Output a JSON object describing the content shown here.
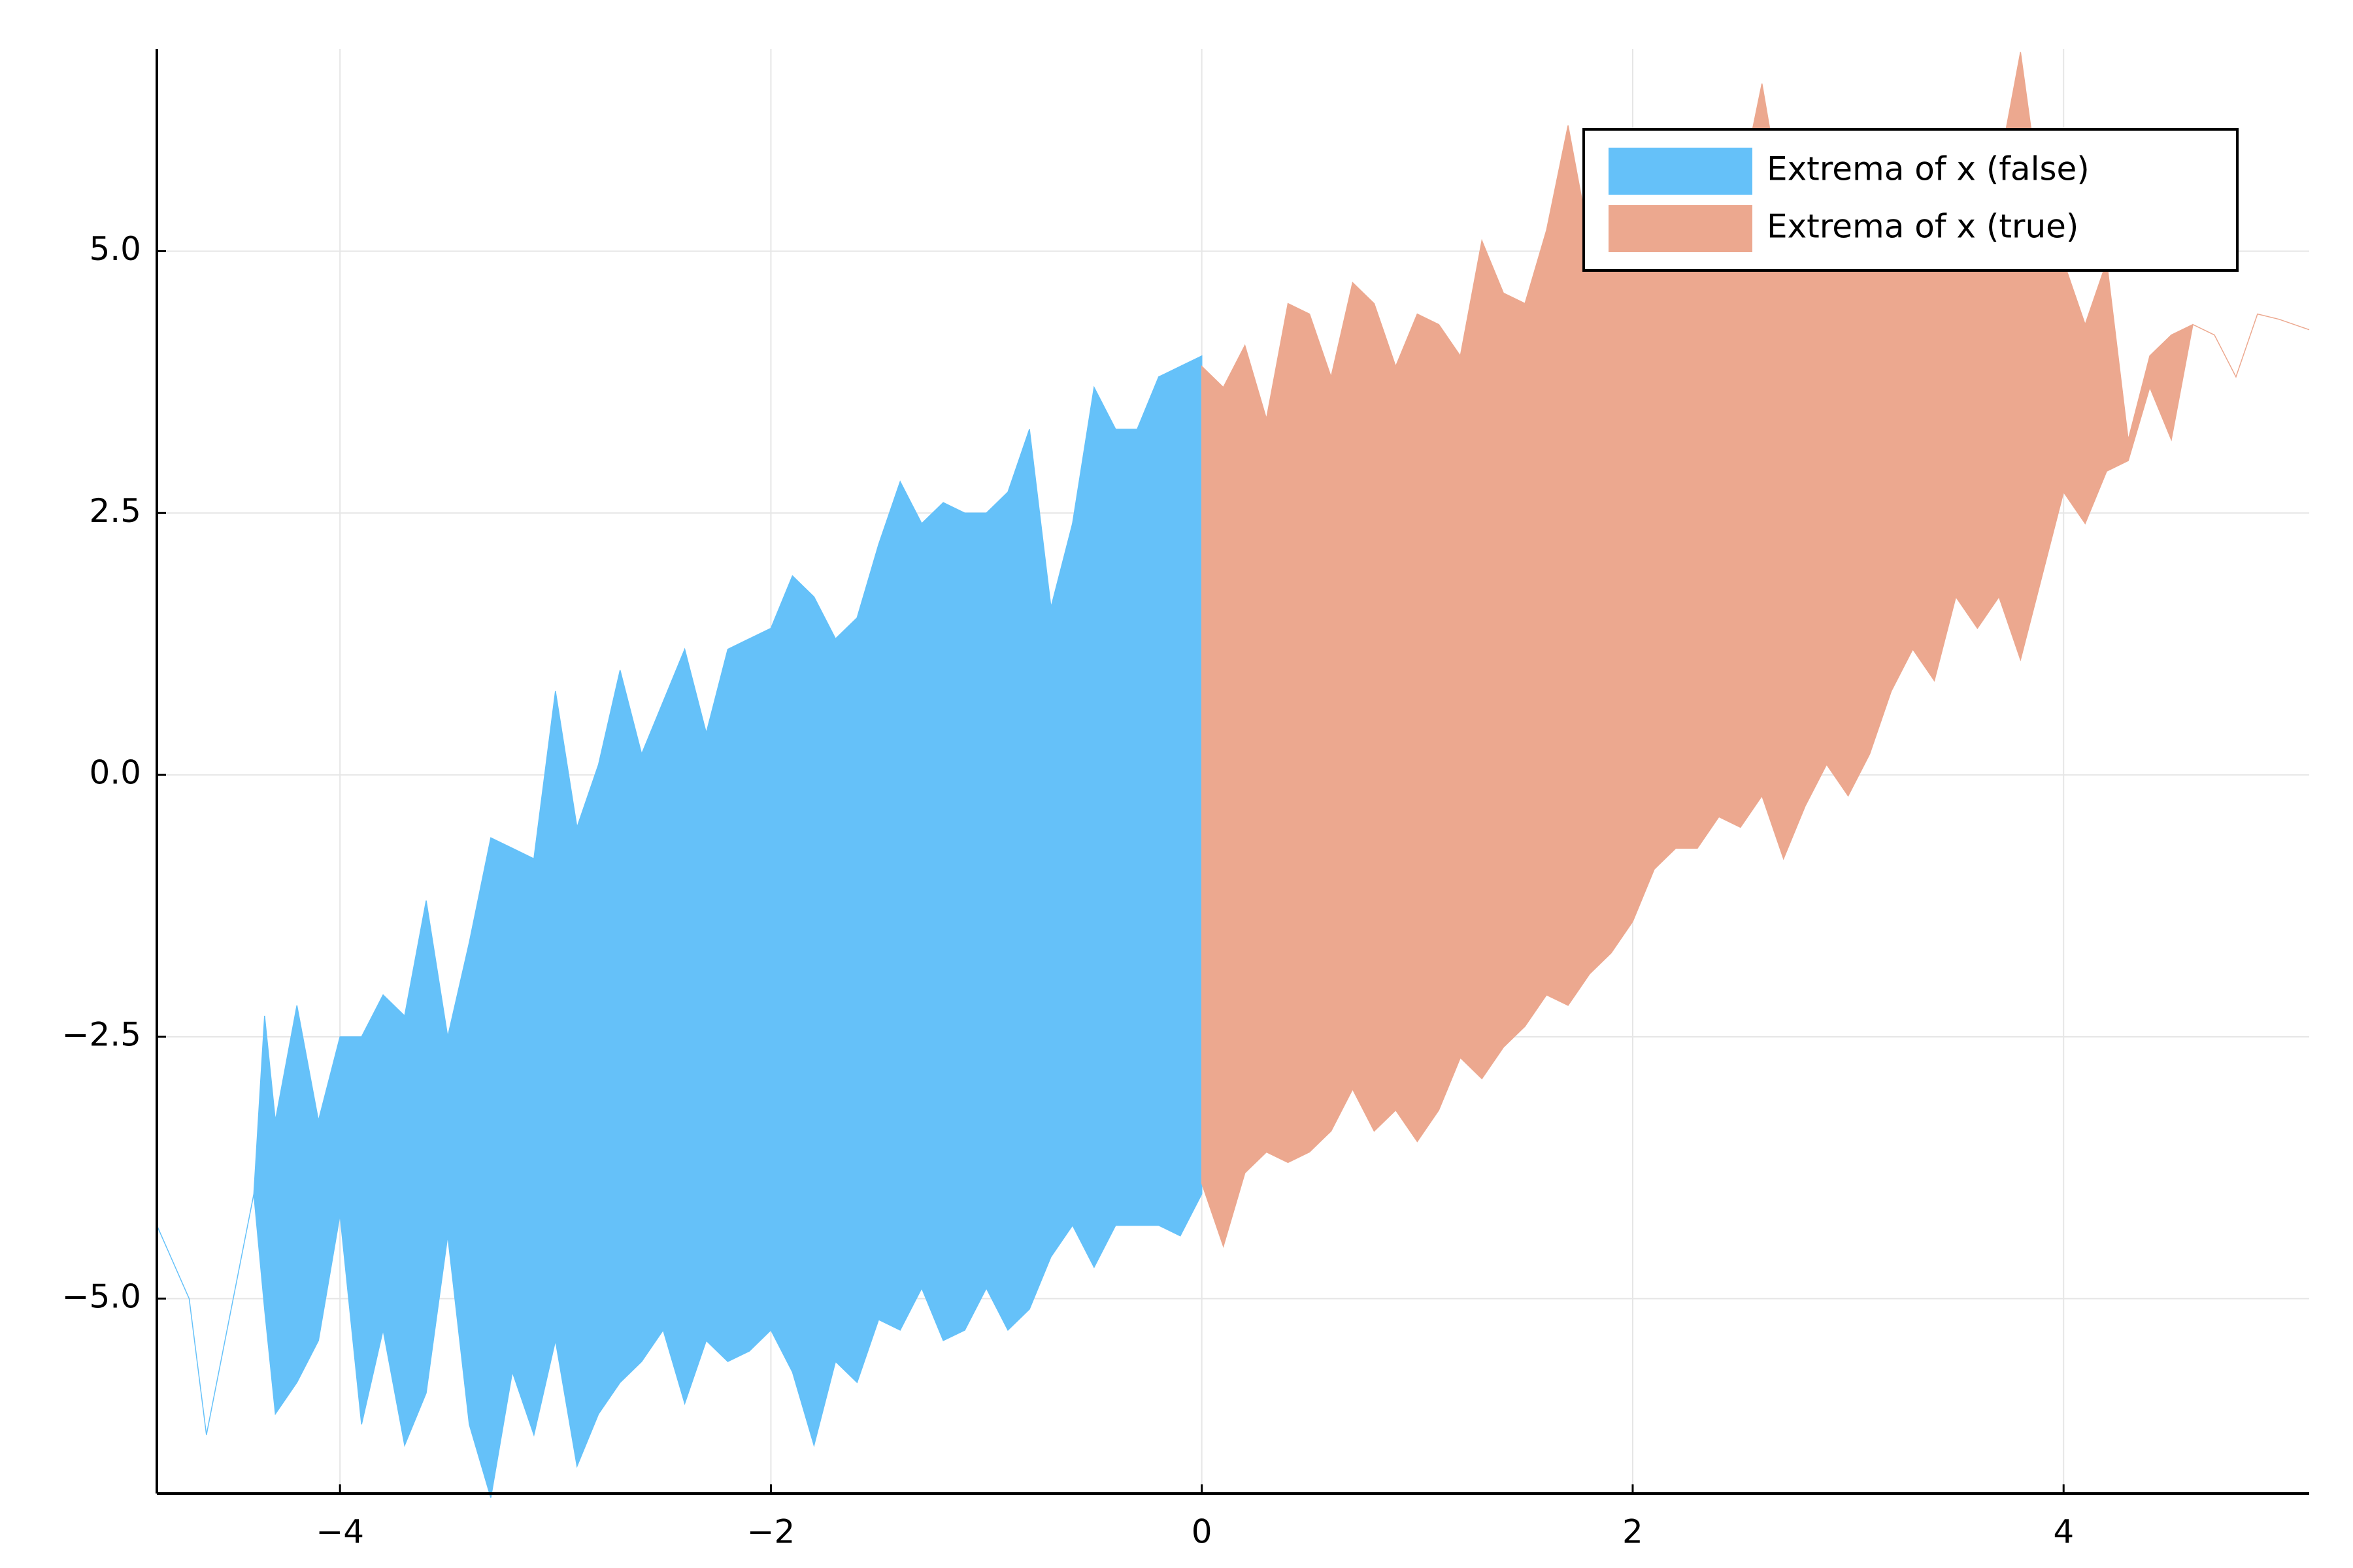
{
  "chart_data": {
    "type": "band",
    "xlim": [
      -4.85,
      5.14
    ],
    "ylim": [
      -6.86,
      6.93
    ],
    "xticks": [
      {
        "value": -4,
        "label": "−4"
      },
      {
        "value": -2,
        "label": "−2"
      },
      0,
      2,
      4
    ],
    "yticks": [
      {
        "value": -5,
        "label": "−5.0"
      },
      {
        "value": -2.5,
        "label": "−2.5"
      },
      {
        "value": 0,
        "label": "0.0"
      },
      2.5,
      {
        "value": 5,
        "label": "5.0"
      }
    ],
    "grid": true,
    "legend": "top-right",
    "series": [
      {
        "name": "Extrema of x (false)",
        "color": "#65c1f9",
        "x": [
          -4.85,
          -4.7,
          -4.62,
          -4.4,
          -4.35,
          -4.3,
          -4.2,
          -4.1,
          -4.0,
          -3.9,
          -3.8,
          -3.7,
          -3.6,
          -3.5,
          -3.4,
          -3.3,
          -3.2,
          -3.1,
          -3.0,
          -2.9,
          -2.8,
          -2.7,
          -2.6,
          -2.5,
          -2.4,
          -2.3,
          -2.2,
          -2.1,
          -2.0,
          -1.9,
          -1.8,
          -1.7,
          -1.6,
          -1.5,
          -1.4,
          -1.3,
          -1.2,
          -1.1,
          -1.0,
          -0.9,
          -0.8,
          -0.7,
          -0.6,
          -0.5,
          -0.4,
          -0.3,
          -0.2,
          -0.1,
          0.0
        ],
        "upper": [
          -4.3,
          -5.0,
          -6.3,
          -4.0,
          -2.3,
          -3.3,
          -2.2,
          -3.3,
          -2.5,
          -2.5,
          -2.1,
          -2.3,
          -1.2,
          -2.5,
          -1.6,
          -0.6,
          -0.7,
          -0.8,
          0.8,
          -0.5,
          0.1,
          1.0,
          0.2,
          0.7,
          1.2,
          0.4,
          1.2,
          1.3,
          1.4,
          1.9,
          1.7,
          1.3,
          1.5,
          2.2,
          2.8,
          2.4,
          2.6,
          2.5,
          2.5,
          2.7,
          3.3,
          1.6,
          2.4,
          3.7,
          3.3,
          3.3,
          3.8,
          3.9,
          4.0
        ],
        "lower": [
          -4.3,
          -5.0,
          -6.3,
          -4.0,
          -5.1,
          -6.1,
          -5.8,
          -5.4,
          -4.2,
          -6.2,
          -5.3,
          -6.4,
          -5.9,
          -4.4,
          -6.2,
          -6.9,
          -5.7,
          -6.3,
          -5.4,
          -6.6,
          -6.1,
          -5.8,
          -5.6,
          -5.3,
          -6.0,
          -5.4,
          -5.6,
          -5.5,
          -5.3,
          -5.7,
          -6.4,
          -5.6,
          -5.8,
          -5.2,
          -5.3,
          -4.9,
          -5.4,
          -5.3,
          -4.9,
          -5.3,
          -5.1,
          -4.6,
          -4.3,
          -4.7,
          -4.3,
          -4.3,
          -4.3,
          -4.4,
          -4.0
        ]
      },
      {
        "name": "Extrema of x (true)",
        "color": "#eca88f",
        "x": [
          0.0,
          0.1,
          0.2,
          0.3,
          0.4,
          0.5,
          0.6,
          0.7,
          0.8,
          0.9,
          1.0,
          1.1,
          1.2,
          1.3,
          1.4,
          1.5,
          1.6,
          1.7,
          1.8,
          1.9,
          2.0,
          2.1,
          2.2,
          2.3,
          2.4,
          2.5,
          2.6,
          2.7,
          2.8,
          2.9,
          3.0,
          3.1,
          3.2,
          3.3,
          3.4,
          3.5,
          3.6,
          3.7,
          3.8,
          3.9,
          4.0,
          4.1,
          4.2,
          4.3,
          4.4,
          4.5,
          4.6,
          4.7,
          4.8,
          4.9,
          5.0,
          5.14
        ],
        "upper": [
          3.9,
          3.7,
          4.1,
          3.4,
          4.5,
          4.4,
          3.8,
          4.7,
          4.5,
          3.9,
          4.4,
          4.3,
          4.0,
          5.1,
          4.6,
          4.5,
          5.2,
          6.2,
          5.1,
          5.6,
          4.8,
          5.1,
          4.8,
          5.4,
          5.6,
          5.6,
          6.6,
          5.4,
          5.8,
          5.5,
          5.1,
          5.1,
          5.3,
          5.6,
          5.6,
          5.3,
          5.7,
          5.8,
          6.9,
          5.4,
          4.9,
          4.3,
          4.9,
          3.2,
          4.0,
          4.2,
          4.3,
          4.2,
          3.8,
          4.4,
          4.35,
          4.25
        ],
        "lower": [
          -3.9,
          -4.5,
          -3.8,
          -3.6,
          -3.7,
          -3.6,
          -3.4,
          -3.0,
          -3.4,
          -3.2,
          -3.5,
          -3.2,
          -2.7,
          -2.9,
          -2.6,
          -2.4,
          -2.1,
          -2.2,
          -1.9,
          -1.7,
          -1.4,
          -0.9,
          -0.7,
          -0.7,
          -0.4,
          -0.5,
          -0.2,
          -0.8,
          -0.3,
          0.1,
          -0.2,
          0.2,
          0.8,
          1.2,
          0.9,
          1.7,
          1.4,
          1.7,
          1.1,
          1.9,
          2.7,
          2.4,
          2.9,
          3.0,
          3.7,
          3.2,
          4.3,
          4.2,
          3.8,
          4.4,
          4.35,
          4.25
        ]
      }
    ]
  }
}
